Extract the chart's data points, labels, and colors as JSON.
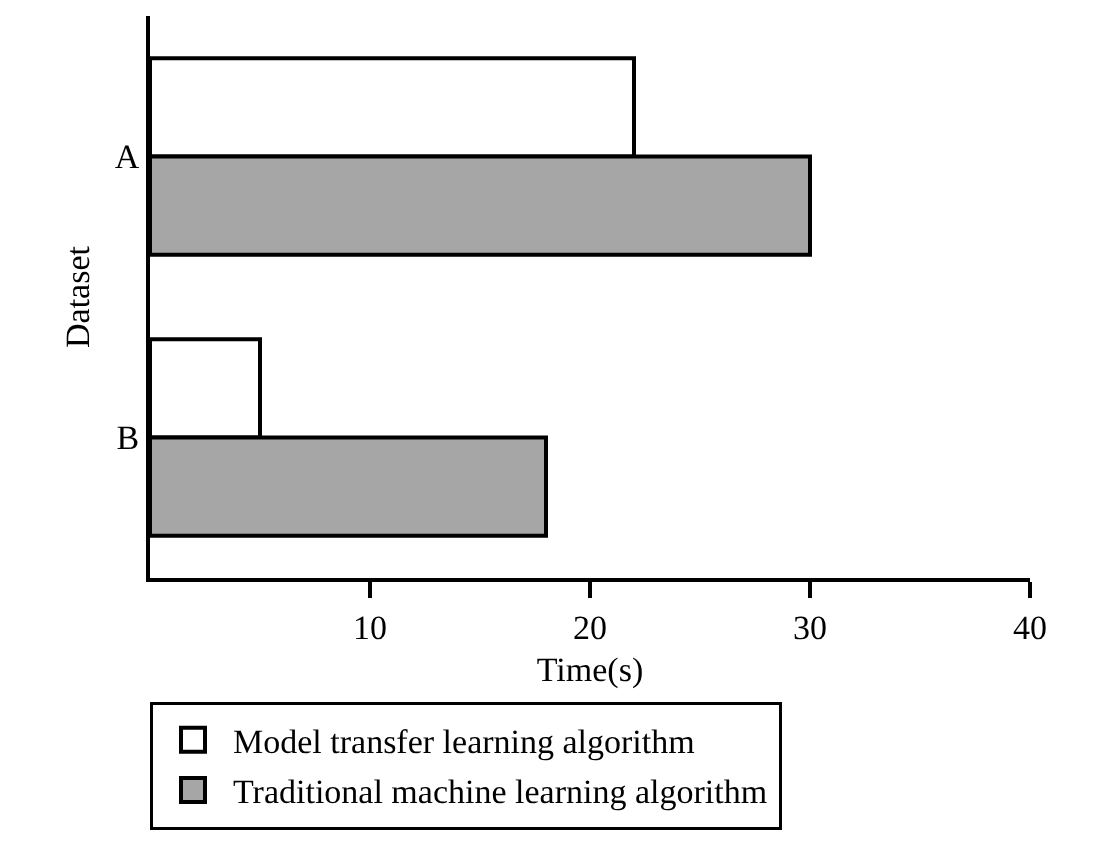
{
  "chart_data": {
    "type": "bar",
    "orientation": "horizontal",
    "xlabel": "Time(s)",
    "ylabel": "Dataset",
    "categories": [
      "A",
      "B"
    ],
    "series": [
      {
        "name": "Model transfer learning algorithm",
        "color": "#ffffff",
        "values": [
          22,
          5
        ]
      },
      {
        "name": "Traditional machine learning algorithm",
        "color": "#a6a6a6",
        "values": [
          30,
          18
        ]
      }
    ],
    "xlim": [
      0,
      40
    ],
    "xticks": [
      10,
      20,
      30,
      40
    ],
    "grid": false,
    "legend": "bottom"
  }
}
